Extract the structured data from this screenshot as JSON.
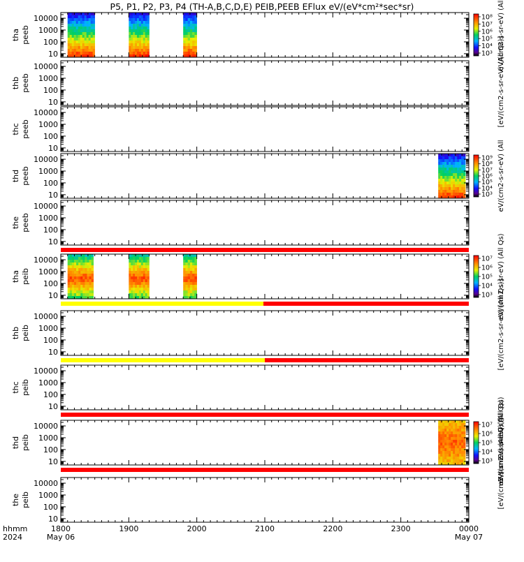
{
  "title": "P5, P1, P2, P3, P4 (TH-A,B,C,D,E) PEIB,PEEB EFlux eV/(eV*cm²*sec*sr)",
  "x_axis": {
    "label_line1": "hhmm",
    "label_line2": "2024",
    "ticks": [
      {
        "value": 0,
        "label": "1800",
        "sub": "May 06"
      },
      {
        "value": 100,
        "label": "1900",
        "sub": ""
      },
      {
        "value": 200,
        "label": "2000",
        "sub": ""
      },
      {
        "value": 300,
        "label": "2100",
        "sub": ""
      },
      {
        "value": 400,
        "label": "2200",
        "sub": ""
      },
      {
        "value": 500,
        "label": "2300",
        "sub": ""
      },
      {
        "value": 600,
        "label": "0000",
        "sub": "May 07"
      }
    ]
  },
  "y_ticks": [
    "10000",
    "1000",
    "100",
    "10"
  ],
  "colorbar_ticks_elec": [
    "10⁸",
    "10⁷",
    "10⁶",
    "10⁵",
    "10⁴",
    "10³"
  ],
  "colorbar_ticks_elec_d": [
    "10⁹",
    "10⁸",
    "10⁷",
    "10⁶",
    "10⁵",
    "10⁴",
    "10³"
  ],
  "colorbar_ticks_ion": [
    "10⁷",
    "10⁶",
    "10⁵",
    "10⁴",
    "10³"
  ],
  "colorbar_label_elec": "eV/(cm2-s-sr-eV) (All",
  "colorbar_label_elec_b": "[eV/(cm2-s-sr-eV) (All Qs)]",
  "colorbar_label_ion": "eV/(cm2-s-sr-eV) (All Qs)",
  "colorbar_label_ion_b": "[eV/(cm2-s-sr-eV) (All Qs)]",
  "colors": {
    "flag_red": "#ff0000",
    "flag_yellow": "#ffff00"
  },
  "chart_data": {
    "type": "heatmap",
    "x_unit": "minutes after 2024-05-06 18:00",
    "xlim": [
      0,
      600
    ],
    "y_scale": "log",
    "ylim": [
      5,
      30000
    ],
    "panels": [
      {
        "probe": "tha",
        "product": "peeb",
        "line1": "tha",
        "line2": "peeb",
        "colorbar": "elec",
        "blocks": [
          [
            10,
            50,
            "elec"
          ],
          [
            100,
            130,
            "elec"
          ],
          [
            180,
            200,
            "elec"
          ]
        ]
      },
      {
        "probe": "thb",
        "product": "peeb",
        "line1": "thb",
        "line2": "peeb",
        "colorbar": "none",
        "blocks": []
      },
      {
        "probe": "thc",
        "product": "peeb",
        "line1": "thc",
        "line2": "peeb",
        "colorbar": "none",
        "blocks": []
      },
      {
        "probe": "thd",
        "product": "peeb",
        "line1": "thd",
        "line2": "peeb",
        "colorbar": "elec_d",
        "blocks": [
          [
            555,
            595,
            "elec"
          ]
        ]
      },
      {
        "probe": "the",
        "product": "peeb",
        "line1": "the",
        "line2": "peeb",
        "colorbar": "none",
        "blocks": [],
        "flag": [
          [
            0,
            600,
            "red"
          ]
        ]
      },
      {
        "probe": "tha",
        "product": "peib",
        "line1": "tha",
        "line2": "peib",
        "colorbar": "ion",
        "blocks": [
          [
            10,
            48,
            "ion"
          ],
          [
            100,
            130,
            "ion"
          ],
          [
            180,
            200,
            "ion"
          ]
        ],
        "flag": [
          [
            0,
            298,
            "yellow"
          ],
          [
            298,
            600,
            "red"
          ]
        ]
      },
      {
        "probe": "thb",
        "product": "peib",
        "line1": "thb",
        "line2": "peib",
        "colorbar": "none",
        "blocks": [],
        "flag": [
          [
            0,
            300,
            "yellow"
          ],
          [
            300,
            600,
            "red"
          ]
        ]
      },
      {
        "probe": "thc",
        "product": "peib",
        "line1": "thc",
        "line2": "peib",
        "colorbar": "none",
        "blocks": [],
        "flag": [
          [
            0,
            600,
            "red"
          ]
        ]
      },
      {
        "probe": "thd",
        "product": "peib",
        "line1": "thd",
        "line2": "peib",
        "colorbar": "ion_d",
        "blocks": [
          [
            555,
            595,
            "iond"
          ]
        ],
        "flag": [
          [
            0,
            600,
            "red"
          ]
        ]
      },
      {
        "probe": "the",
        "product": "peib",
        "line1": "the",
        "line2": "peib",
        "colorbar": "none",
        "blocks": []
      }
    ]
  }
}
